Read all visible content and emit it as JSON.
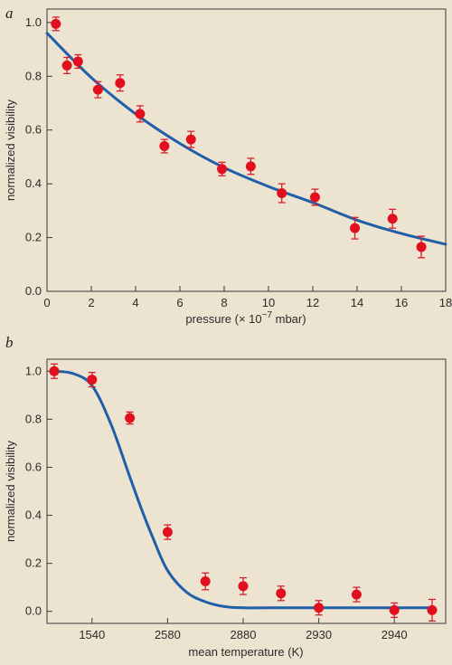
{
  "colors": {
    "background": "#ece3d0",
    "fit_line": "#1f5fa8",
    "points": "#e2101f",
    "axes": "#3a3a3a"
  },
  "chart_data": [
    {
      "type": "scatter",
      "panel_label": "a",
      "xlabel": "pressure (× 10",
      "xlabel_exp": "−7",
      "xlabel_unit": " mbar)",
      "ylabel": "normalized visibility",
      "xlim": [
        0,
        18
      ],
      "ylim": [
        0,
        1.05
      ],
      "xticks": [
        0,
        2,
        4,
        6,
        8,
        10,
        12,
        14,
        16,
        18
      ],
      "yticks": [
        "0.0",
        "0.2",
        "0.4",
        "0.6",
        "0.8",
        "1.0"
      ],
      "grid": false,
      "points": [
        {
          "x": 0.4,
          "y": 0.995,
          "err": 0.025
        },
        {
          "x": 0.9,
          "y": 0.84,
          "err": 0.03
        },
        {
          "x": 1.4,
          "y": 0.855,
          "err": 0.025
        },
        {
          "x": 2.3,
          "y": 0.75,
          "err": 0.03
        },
        {
          "x": 3.3,
          "y": 0.775,
          "err": 0.03
        },
        {
          "x": 4.2,
          "y": 0.66,
          "err": 0.03
        },
        {
          "x": 5.3,
          "y": 0.54,
          "err": 0.025
        },
        {
          "x": 6.5,
          "y": 0.565,
          "err": 0.03
        },
        {
          "x": 7.9,
          "y": 0.455,
          "err": 0.025
        },
        {
          "x": 9.2,
          "y": 0.465,
          "err": 0.03
        },
        {
          "x": 10.6,
          "y": 0.365,
          "err": 0.035
        },
        {
          "x": 12.1,
          "y": 0.35,
          "err": 0.03
        },
        {
          "x": 13.9,
          "y": 0.235,
          "err": 0.04
        },
        {
          "x": 15.6,
          "y": 0.27,
          "err": 0.035
        },
        {
          "x": 16.9,
          "y": 0.165,
          "err": 0.04
        }
      ],
      "fit": {
        "x": [
          0,
          2,
          4,
          6,
          8,
          10,
          12,
          14,
          16,
          18
        ],
        "y": [
          0.96,
          0.795,
          0.66,
          0.55,
          0.46,
          0.39,
          0.33,
          0.265,
          0.215,
          0.175
        ]
      }
    },
    {
      "type": "scatter",
      "panel_label": "b",
      "xlabel": "mean temperature (K)",
      "ylabel": "normalized visibility",
      "categories": [
        "",
        "1540",
        "",
        "2580",
        "",
        "2880",
        "",
        "2930",
        "",
        "2940",
        ""
      ],
      "xtick_labels": [
        "1540",
        "2580",
        "2880",
        "2930",
        "2940"
      ],
      "ylim": [
        -0.05,
        1.05
      ],
      "yticks": [
        "0.0",
        "0.2",
        "0.4",
        "0.6",
        "0.8",
        "1.0"
      ],
      "grid": false,
      "points": [
        {
          "x": 0,
          "y": 1.0,
          "err": 0.03
        },
        {
          "x": 1,
          "y": 0.965,
          "err": 0.03
        },
        {
          "x": 2,
          "y": 0.805,
          "err": 0.025
        },
        {
          "x": 3,
          "y": 0.33,
          "err": 0.03
        },
        {
          "x": 4,
          "y": 0.125,
          "err": 0.035
        },
        {
          "x": 5,
          "y": 0.105,
          "err": 0.035
        },
        {
          "x": 6,
          "y": 0.075,
          "err": 0.03
        },
        {
          "x": 7,
          "y": 0.015,
          "err": 0.03
        },
        {
          "x": 8,
          "y": 0.07,
          "err": 0.03
        },
        {
          "x": 9,
          "y": 0.005,
          "err": 0.03
        },
        {
          "x": 10,
          "y": 0.005,
          "err": 0.045
        }
      ],
      "fit": {
        "x": [
          0,
          0.5,
          1,
          1.5,
          2,
          2.3,
          2.6,
          3,
          3.5,
          4,
          4.5,
          5,
          6,
          7,
          8,
          9,
          10
        ],
        "y": [
          1.0,
          0.99,
          0.94,
          0.78,
          0.56,
          0.43,
          0.31,
          0.17,
          0.08,
          0.04,
          0.02,
          0.015,
          0.015,
          0.015,
          0.015,
          0.015,
          0.015
        ]
      }
    }
  ]
}
